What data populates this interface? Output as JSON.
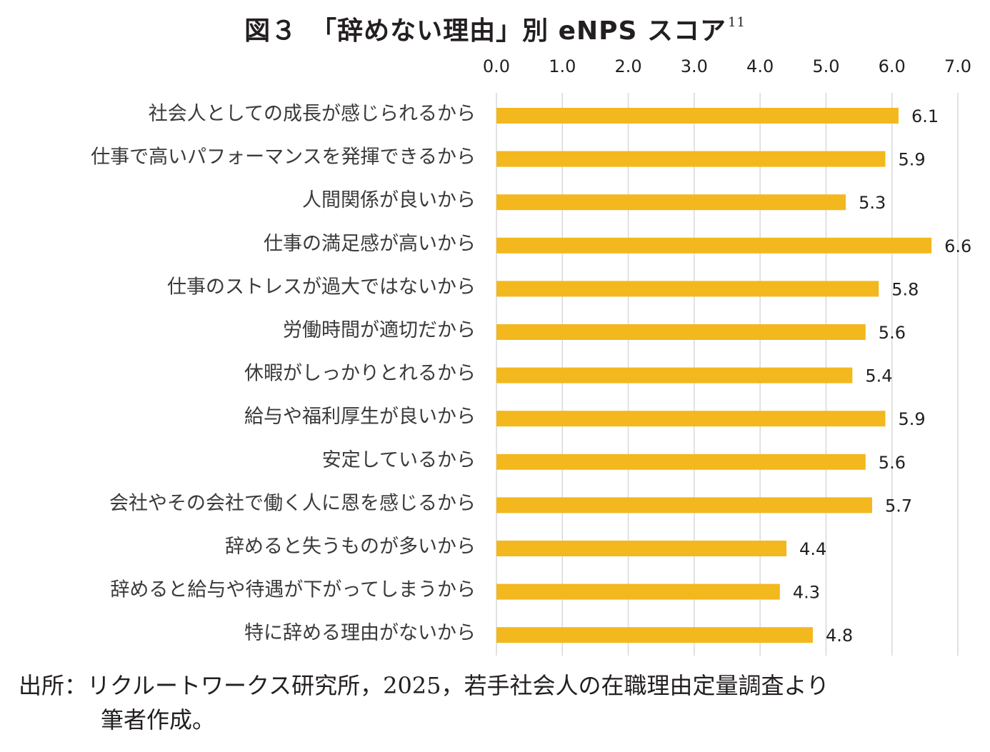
{
  "figure": {
    "title": "図３　「辞めない理由」別 eNPS スコア",
    "title_note": "11"
  },
  "chart_data": {
    "type": "bar",
    "orientation": "horizontal",
    "title": "",
    "xlabel": "",
    "ylabel": "",
    "xlim": [
      0,
      7
    ],
    "x_tick_values": [
      0,
      1,
      2,
      3,
      4,
      5,
      6,
      7
    ],
    "x_tick_labels": [
      "0.0",
      "1.0",
      "2.0",
      "3.0",
      "4.0",
      "5.0",
      "6.0",
      "7.0"
    ],
    "x_axis_position": "top",
    "grid": true,
    "legend": "none",
    "bar_color": "#F2B81D",
    "grid_color": "#d9d9d9",
    "categories": [
      "社会人としての成長が感じられるから",
      "仕事で高いパフォーマンスを発揮できるから",
      "人間関係が良いから",
      "仕事の満足感が高いから",
      "仕事のストレスが過大ではないから",
      "労働時間が適切だから",
      "休暇がしっかりとれるから",
      "給与や福利厚生が良いから",
      "安定しているから",
      "会社やその会社で働く人に恩を感じるから",
      "辞めると失うものが多いから",
      "辞めると給与や待遇が下がってしまうから",
      "特に辞める理由がないから"
    ],
    "values": [
      6.1,
      5.9,
      5.3,
      6.6,
      5.8,
      5.6,
      5.4,
      5.9,
      5.6,
      5.7,
      4.4,
      4.3,
      4.8
    ],
    "value_labels": [
      "6.1",
      "5.9",
      "5.3",
      "6.6",
      "5.8",
      "5.6",
      "5.4",
      "5.9",
      "5.6",
      "5.7",
      "4.4",
      "4.3",
      "4.8"
    ]
  },
  "source": {
    "line1": "出所：リクルートワークス研究所，2025，若手社会人の在職理由定量調査より",
    "line2": "筆者作成。"
  }
}
